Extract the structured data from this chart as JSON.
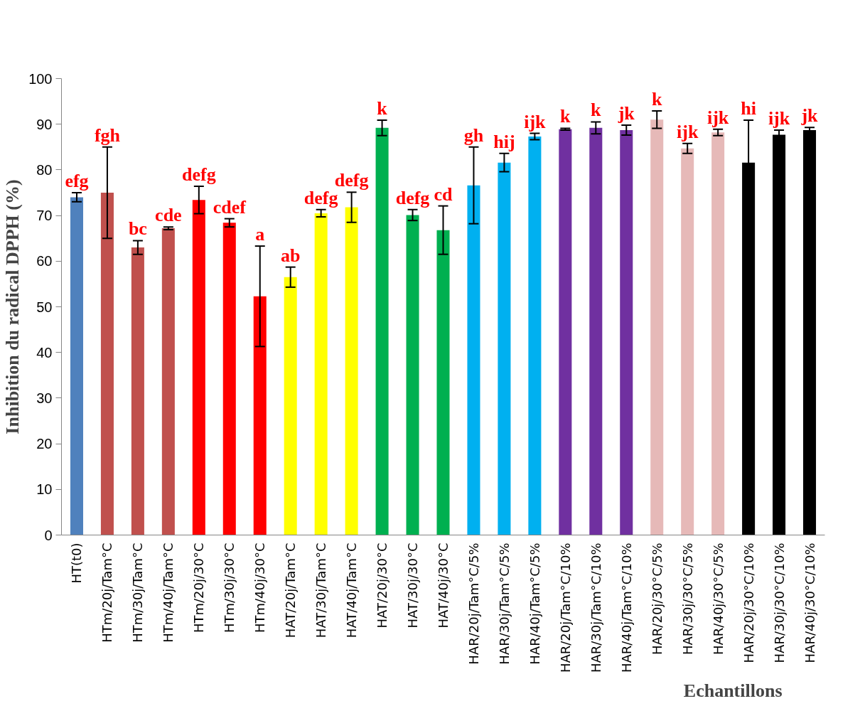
{
  "chart_data": {
    "type": "bar",
    "ylabel": "Inhibition du radical DPPH (%)",
    "xlabel": "Echantillons",
    "categories": [
      "HT(t0)",
      "HTm/20j/Tam°C",
      "HTm/30j/Tam°C",
      "HTm/40j/Tam°C",
      "HTm/20j/30°C",
      "HTm/30j/30°C",
      "HTm/40j/30°C",
      "HAT/20j/Tam°C",
      "HAT/30j/Tam°C",
      "HAT/40j/Tam°C",
      "HAT/20j/30°C",
      "HAT/30j/30°C",
      "HAT/40j/30°C",
      "HAR/20j/Tam°C/5%",
      "HAR/30j/Tam°C/5%",
      "HAR/40j/Tam°C/5%",
      "HAR/20j/Tam°C/10%",
      "HAR/30j/Tam°C/10%",
      "HAR/40j/Tam°C/10%",
      "HAR/20j/30°C/5%",
      "HAR/30j/30°C/5%",
      "HAR/40j/30°C/5%",
      "HAR/20j/30°C/10%",
      "HAR/30j/30°C/10%",
      "HAR/40j/30°C/10%"
    ],
    "values": [
      74.0,
      75.0,
      63.0,
      67.2,
      73.4,
      68.4,
      52.3,
      56.5,
      70.5,
      71.8,
      89.2,
      70.1,
      66.8,
      76.6,
      81.6,
      87.3,
      88.9,
      89.2,
      88.7,
      91.0,
      84.7,
      88.2,
      81.6,
      87.7,
      88.7
    ],
    "errors": [
      1.0,
      10.0,
      1.5,
      0.3,
      3.0,
      0.9,
      11.0,
      2.2,
      0.8,
      3.3,
      1.7,
      1.2,
      5.3,
      8.4,
      2.0,
      0.7,
      0.2,
      1.3,
      1.1,
      1.9,
      1.1,
      0.7,
      9.3,
      1.0,
      0.6
    ],
    "colors": [
      "#4f81bd",
      "#c0504d",
      "#c0504d",
      "#c0504d",
      "#ff0000",
      "#ff0000",
      "#ff0000",
      "#ffff00",
      "#ffff00",
      "#ffff00",
      "#00b050",
      "#00b050",
      "#00b050",
      "#00b0f0",
      "#00b0f0",
      "#00b0f0",
      "#7030a0",
      "#7030a0",
      "#7030a0",
      "#e6b9b8",
      "#e6b9b8",
      "#e6b9b8",
      "#000000",
      "#000000",
      "#000000"
    ],
    "ylim": [
      0,
      100
    ],
    "yticks": [
      0,
      10,
      20,
      30,
      40,
      50,
      60,
      70,
      80,
      90,
      100
    ],
    "annotations": [
      {
        "text": "efg",
        "x": "HT(t0)",
        "y": 74.0
      },
      {
        "text": "fgh",
        "x": "HTm/20j/Tam°C",
        "y": 75.0
      },
      {
        "text": "bc",
        "x": "HTm/30j/Tam°C",
        "y": 63.0
      },
      {
        "text": "cde",
        "x": "HTm/40j/Tam°C",
        "y": 67.2
      },
      {
        "text": "defg",
        "x": "HTm/20j/30°C",
        "y": 73.4
      },
      {
        "text": "cdef",
        "x": "HTm/30j/30°C",
        "y": 68.4
      },
      {
        "text": "a",
        "x": "HTm/40j/30°C",
        "y": 52.3
      },
      {
        "text": "ab",
        "x": "HAT/20j/Tam°C",
        "y": 56.5
      },
      {
        "text": "defg",
        "x": "HAT/30j/Tam°C",
        "y": 70.5
      },
      {
        "text": "defg",
        "x": "HAT/40j/Tam°C",
        "y": 71.8
      },
      {
        "text": "k",
        "x": "HAT/20j/30°C",
        "y": 89.2
      },
      {
        "text": "defg",
        "x": "HAT/30j/30°C",
        "y": 70.1
      },
      {
        "text": "cd",
        "x": "HAT/40j/30°C",
        "y": 66.8
      },
      {
        "text": "gh",
        "x": "HAR/20j/Tam°C/5%",
        "y": 76.6
      },
      {
        "text": "hij",
        "x": "HAR/30j/Tam°C/5%",
        "y": 81.6
      },
      {
        "text": "ijk",
        "x": "HAR/40j/Tam°C/5%",
        "y": 87.3
      },
      {
        "text": "k",
        "x": "HAR/20j/Tam°C/10%",
        "y": 88.9
      },
      {
        "text": "k",
        "x": "HAR/30j/Tam°C/10%",
        "y": 89.2
      },
      {
        "text": "jk",
        "x": "HAR/40j/Tam°C/10%",
        "y": 88.7
      },
      {
        "text": "k",
        "x": "HAR/20j/30°C/5%",
        "y": 91.0
      },
      {
        "text": "ijk",
        "x": "HAR/30j/30°C/5%",
        "y": 84.7
      },
      {
        "text": "ijk",
        "x": "HAR/40j/30°C/5%",
        "y": 88.2
      },
      {
        "text": "hi",
        "x": "HAR/20j/30°C/10%",
        "y": 81.6
      },
      {
        "text": "ijk",
        "x": "HAR/30j/30°C/10%",
        "y": 87.7
      },
      {
        "text": "jk",
        "x": "HAR/40j/30°C/10%",
        "y": 88.7
      }
    ]
  }
}
